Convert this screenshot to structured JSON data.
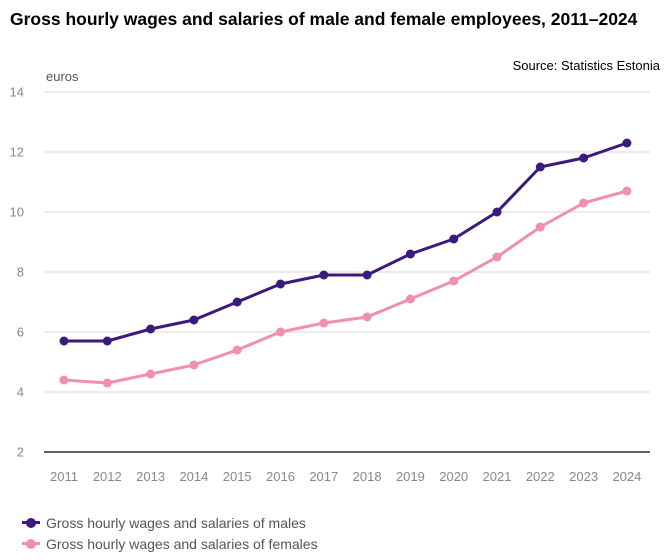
{
  "chart_data": {
    "type": "line",
    "title": "Gross hourly wages and salaries of male and female employees, 2011–2024",
    "source": "Source: Statistics Estonia",
    "ylabel": "euros",
    "xlabel": "",
    "categories": [
      "2011",
      "2012",
      "2013",
      "2014",
      "2015",
      "2016",
      "2017",
      "2018",
      "2019",
      "2020",
      "2021",
      "2022",
      "2023",
      "2024"
    ],
    "ylim": [
      2,
      14
    ],
    "yticks": [
      2,
      4,
      6,
      8,
      10,
      12,
      14
    ],
    "grid": true,
    "legend_position": "bottom-left",
    "series": [
      {
        "name": "Gross hourly wages and salaries of males",
        "color": "#3b1a7e",
        "values": [
          5.7,
          5.7,
          6.1,
          6.4,
          7.0,
          7.6,
          7.9,
          7.9,
          8.6,
          9.1,
          10.0,
          11.5,
          11.8,
          12.3
        ]
      },
      {
        "name": "Gross hourly wages and salaries of females",
        "color": "#f08fb0",
        "values": [
          4.4,
          4.3,
          4.6,
          4.9,
          5.4,
          6.0,
          6.3,
          6.5,
          7.1,
          7.7,
          8.5,
          9.5,
          10.3,
          10.7
        ]
      }
    ]
  }
}
